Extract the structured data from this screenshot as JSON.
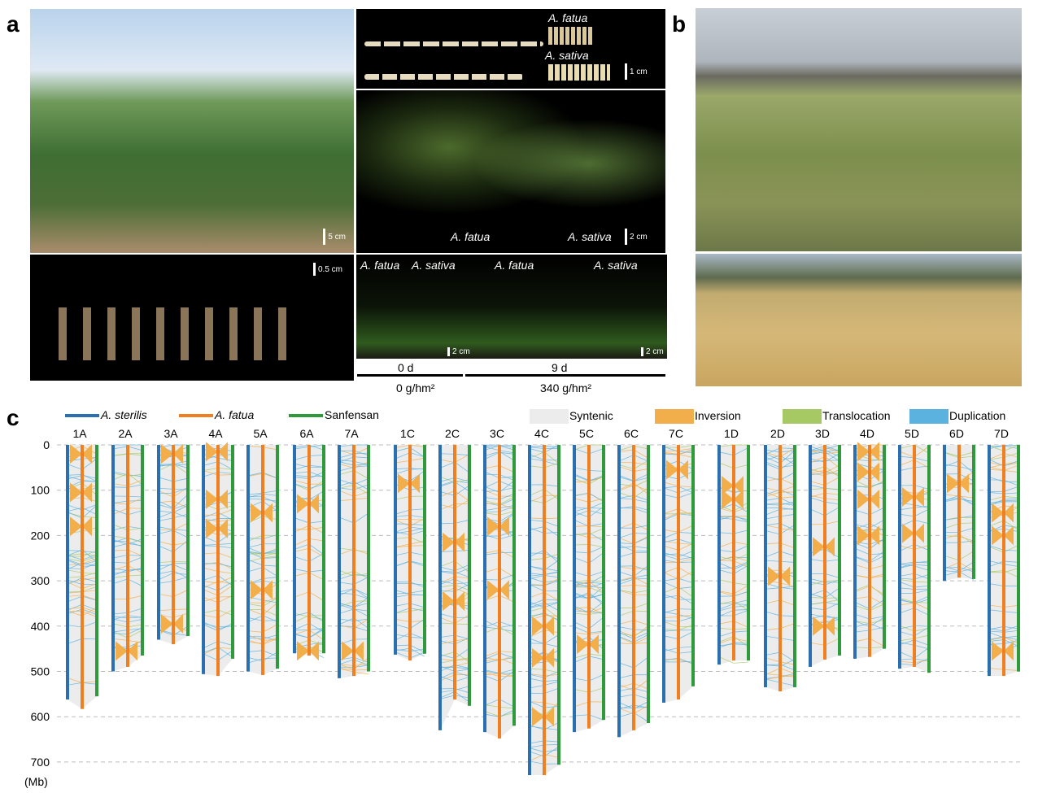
{
  "panels": {
    "a": "a",
    "b": "b",
    "c": "c"
  },
  "panel_a": {
    "plant_scale": "5 cm",
    "seed_labels": [
      "A. fatua",
      "A. sativa"
    ],
    "seed_scale": "1 cm",
    "panicle_labels": [
      "A. fatua",
      "A. sativa"
    ],
    "panicle_scale": "2 cm",
    "spikelet_scale": "0.5 cm",
    "seedling_labels": [
      "A. fatua",
      "A. sativa",
      "A. fatua",
      "A. sativa"
    ],
    "seedling_scales": [
      "2 cm",
      "2 cm"
    ],
    "time_labels": [
      "0 d",
      "9 d"
    ],
    "dose_labels": [
      "0 g/hm²",
      "340 g/hm²"
    ]
  },
  "legend": {
    "genomes": [
      {
        "label": "A. sterilis",
        "color": "#2a6fb0",
        "italic": true
      },
      {
        "label": "A. fatua",
        "color": "#f07f22",
        "italic": true
      },
      {
        "label": "Sanfensan",
        "color": "#2f9a3c",
        "italic": false
      }
    ],
    "types": [
      {
        "label": "Syntenic",
        "color": "#ececec"
      },
      {
        "label": "Inversion",
        "color": "#f2ae4a"
      },
      {
        "label": "Translocation",
        "color": "#a6c963"
      },
      {
        "label": "Duplication",
        "color": "#5bb2de"
      }
    ]
  },
  "chart_data": {
    "type": "synteny",
    "ylabel": "(Mb)",
    "yticks": [
      0,
      100,
      200,
      300,
      400,
      500,
      600,
      700
    ],
    "ylim": [
      0,
      720
    ],
    "series": [
      "A. sterilis",
      "A. fatua",
      "Sanfensan"
    ],
    "chromosomes": [
      {
        "name": "1A",
        "lengths": [
          562,
          583,
          555
        ],
        "inversions": [
          20,
          105,
          180
        ]
      },
      {
        "name": "2A",
        "lengths": [
          500,
          490,
          465
        ],
        "inversions": [
          455
        ]
      },
      {
        "name": "3A",
        "lengths": [
          430,
          440,
          422
        ],
        "inversions": [
          20,
          395
        ]
      },
      {
        "name": "4A",
        "lengths": [
          506,
          510,
          472
        ],
        "inversions": [
          15,
          120,
          185
        ]
      },
      {
        "name": "5A",
        "lengths": [
          500,
          508,
          494
        ],
        "inversions": [
          150,
          320
        ]
      },
      {
        "name": "6A",
        "lengths": [
          460,
          465,
          460
        ],
        "inversions": [
          130,
          455
        ]
      },
      {
        "name": "7A",
        "lengths": [
          515,
          510,
          500
        ],
        "inversions": [
          455
        ]
      },
      {
        "name": "1C",
        "lengths": [
          463,
          476,
          461
        ],
        "inversions": [
          85
        ]
      },
      {
        "name": "2C",
        "lengths": [
          630,
          562,
          576
        ],
        "inversions": [
          215,
          345
        ]
      },
      {
        "name": "3C",
        "lengths": [
          634,
          648,
          620
        ],
        "inversions": [
          180,
          320
        ]
      },
      {
        "name": "4C",
        "lengths": [
          729,
          729,
          706
        ],
        "inversions": [
          400,
          470,
          600
        ]
      },
      {
        "name": "5C",
        "lengths": [
          634,
          626,
          607
        ],
        "inversions": [
          440
        ]
      },
      {
        "name": "6C",
        "lengths": [
          645,
          630,
          614
        ],
        "inversions": []
      },
      {
        "name": "7C",
        "lengths": [
          569,
          562,
          533
        ],
        "inversions": [
          55
        ]
      },
      {
        "name": "1D",
        "lengths": [
          485,
          476,
          476
        ],
        "inversions": [
          90,
          120
        ]
      },
      {
        "name": "2D",
        "lengths": [
          535,
          544,
          535
        ],
        "inversions": [
          290
        ]
      },
      {
        "name": "3D",
        "lengths": [
          490,
          474,
          465
        ],
        "inversions": [
          225,
          400
        ]
      },
      {
        "name": "4D",
        "lengths": [
          472,
          468,
          450
        ],
        "inversions": [
          15,
          60,
          120,
          200
        ]
      },
      {
        "name": "5D",
        "lengths": [
          494,
          490,
          503
        ],
        "inversions": [
          115,
          195
        ]
      },
      {
        "name": "6D",
        "lengths": [
          300,
          293,
          296
        ],
        "inversions": [
          85
        ]
      },
      {
        "name": "7D",
        "lengths": [
          510,
          510,
          500
        ],
        "inversions": [
          150,
          200,
          455
        ]
      }
    ]
  }
}
